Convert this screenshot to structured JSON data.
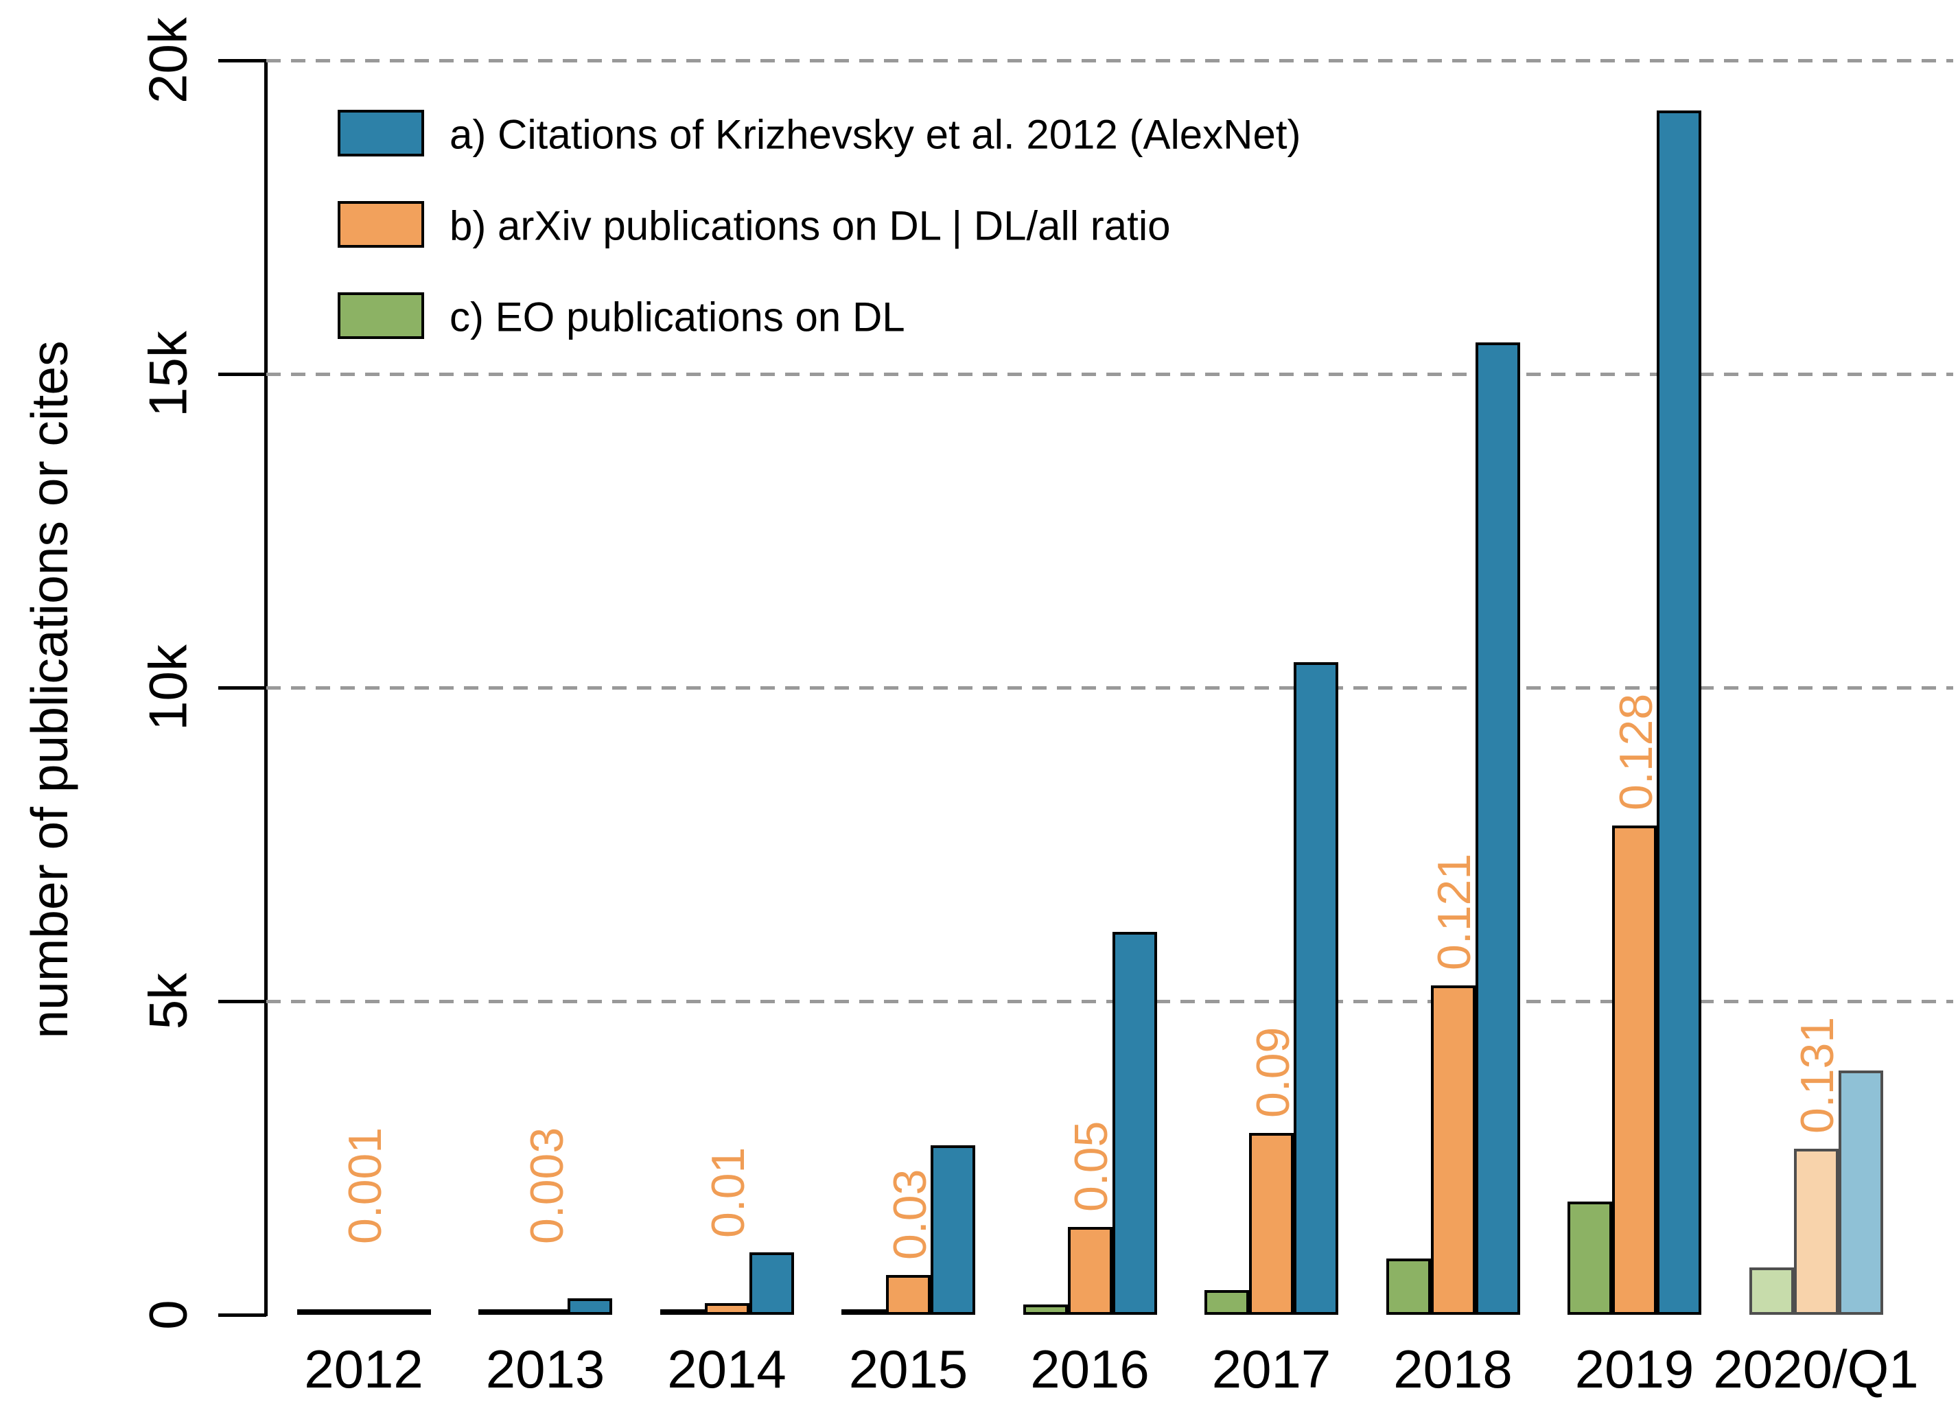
{
  "chart_data": {
    "type": "bar",
    "title": "",
    "ylabel": "number of publications or cites",
    "categories": [
      "2012",
      "2013",
      "2014",
      "2015",
      "2016",
      "2017",
      "2018",
      "2019",
      "2020/Q1"
    ],
    "series": [
      {
        "id": "alexnet-citations",
        "label": "a) Citations of Krizhevsky et al. 2012 (AlexNet)",
        "color": "#2d81a8",
        "faded_color": "#8fc1d6",
        "values": [
          30,
          260,
          1000,
          2700,
          6100,
          10400,
          15500,
          19200,
          3900
        ]
      },
      {
        "id": "arxiv-dl-publications",
        "label": "b) arXiv publications on DL | DL/all ratio",
        "color": "#f2a15c",
        "faded_color": "#f8d3ab",
        "values": [
          15,
          60,
          190,
          630,
          1400,
          2900,
          5250,
          7800,
          2650
        ]
      },
      {
        "id": "eo-dl-publications",
        "label": "c) EO publications on DL",
        "color": "#8cb264",
        "faded_color": "#c7dcab",
        "values": [
          2,
          8,
          25,
          60,
          160,
          390,
          900,
          1800,
          750
        ]
      }
    ],
    "ratio_labels": [
      "0.001",
      "0.003",
      "0.01",
      "0.03",
      "0.05",
      "0.09",
      "0.121",
      "0.128",
      "0.131"
    ],
    "ratio_label_color": "#f09d55",
    "yticks": [
      {
        "value": 0,
        "label": "0"
      },
      {
        "value": 5000,
        "label": "5k"
      },
      {
        "value": 10000,
        "label": "10k"
      },
      {
        "value": 15000,
        "label": "15k"
      },
      {
        "value": 20000,
        "label": "20k"
      }
    ],
    "grid_values": [
      5000,
      10000,
      15000,
      20000
    ],
    "ylim": [
      0,
      20000
    ],
    "gridline_color": "#999999",
    "bar_border_color": "#000000",
    "faded_group_index": 8,
    "faded_border_color": "#4f4f4f",
    "legend_position": "top-left",
    "grid": true
  }
}
